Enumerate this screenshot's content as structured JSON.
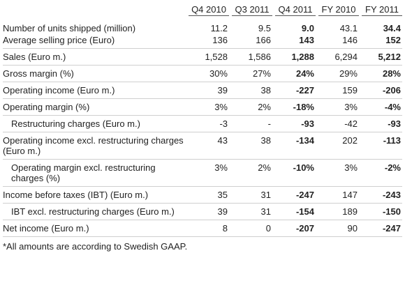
{
  "table": {
    "columns": [
      "Q4 2010",
      "Q3 2011",
      "Q4 2011",
      "FY 2010",
      "FY 2011"
    ],
    "rows": [
      {
        "label": "Number of units shipped (million)",
        "values": [
          "11.2",
          "9.5",
          "9.0",
          "43.1",
          "34.4"
        ]
      },
      {
        "label": "Average selling price (Euro)",
        "values": [
          "136",
          "166",
          "143",
          "146",
          "152"
        ]
      },
      {
        "label": "Sales (Euro m.)",
        "values": [
          "1,528",
          "1,586",
          "1,288",
          "6,294",
          "5,212"
        ]
      },
      {
        "label": "Gross margin (%)",
        "values": [
          "30%",
          "27%",
          "24%",
          "29%",
          "28%"
        ]
      },
      {
        "label": "Operating income (Euro m.)",
        "values": [
          "39",
          "38",
          "-227",
          "159",
          "-206"
        ]
      },
      {
        "label": "Operating margin (%)",
        "values": [
          "3%",
          "2%",
          "-18%",
          "3%",
          "-4%"
        ]
      },
      {
        "label": "Restructuring charges (Euro m.)",
        "values": [
          "-3",
          "-",
          "-93",
          "-42",
          "-93"
        ],
        "indent": true
      },
      {
        "label": "Operating income excl. restructuring charges (Euro m.)",
        "values": [
          "43",
          "38",
          "-134",
          "202",
          "-113"
        ]
      },
      {
        "label": "Operating margin excl. restructuring charges (%)",
        "values": [
          "3%",
          "2%",
          "-10%",
          "3%",
          "-2%"
        ],
        "indent": true
      },
      {
        "label": "Income before taxes (IBT) (Euro m.)",
        "values": [
          "35",
          "31",
          "-247",
          "147",
          "-243"
        ]
      },
      {
        "label": "IBT excl. restructuring charges (Euro m.)",
        "values": [
          "39",
          "31",
          "-154",
          "189",
          "-150"
        ],
        "indent": true
      },
      {
        "label": "Net income (Euro m.)",
        "values": [
          "8",
          "0",
          "-207",
          "90",
          "-247"
        ]
      }
    ],
    "bold_columns": [
      2,
      4
    ],
    "footnote": "*All amounts are according to Swedish GAAP."
  }
}
